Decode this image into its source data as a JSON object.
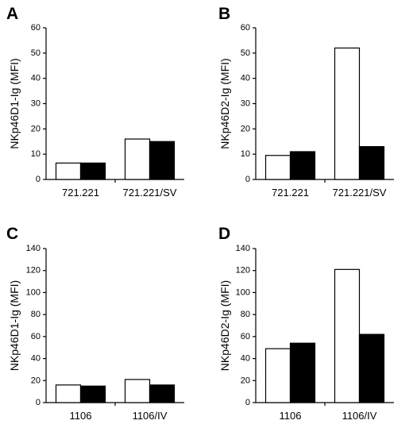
{
  "chart_data": [
    {
      "panel": "A",
      "type": "bar",
      "ylabel": "NKp46D1-Ig (MFI)",
      "ylim": [
        0,
        60
      ],
      "yticks": [
        0,
        10,
        20,
        30,
        40,
        50,
        60
      ],
      "categories": [
        "721.221",
        "721.221/SV"
      ],
      "series": [
        {
          "values": [
            6.5,
            16
          ],
          "fill": "#ffffff"
        },
        {
          "values": [
            6.5,
            15
          ],
          "fill": "#000000"
        }
      ]
    },
    {
      "panel": "B",
      "type": "bar",
      "ylabel": "NKp46D2-Ig (MFI)",
      "ylim": [
        0,
        60
      ],
      "yticks": [
        0,
        10,
        20,
        30,
        40,
        50,
        60
      ],
      "categories": [
        "721.221",
        "721.221/SV"
      ],
      "series": [
        {
          "values": [
            9.5,
            52
          ],
          "fill": "#ffffff"
        },
        {
          "values": [
            11,
            13
          ],
          "fill": "#000000"
        }
      ]
    },
    {
      "panel": "C",
      "type": "bar",
      "ylabel": "NKp46D1-Ig (MFI)",
      "ylim": [
        0,
        140
      ],
      "yticks": [
        0,
        20,
        40,
        60,
        80,
        100,
        120,
        140
      ],
      "categories": [
        "1106",
        "1106/IV"
      ],
      "series": [
        {
          "values": [
            16,
            21
          ],
          "fill": "#ffffff"
        },
        {
          "values": [
            15,
            16
          ],
          "fill": "#000000"
        }
      ]
    },
    {
      "panel": "D",
      "type": "bar",
      "ylabel": "NKp46D2-Ig (MFI)",
      "ylim": [
        0,
        140
      ],
      "yticks": [
        0,
        20,
        40,
        60,
        80,
        100,
        120,
        140
      ],
      "categories": [
        "1106",
        "1106/IV"
      ],
      "series": [
        {
          "values": [
            49,
            121
          ],
          "fill": "#ffffff"
        },
        {
          "values": [
            54,
            62
          ],
          "fill": "#000000"
        }
      ]
    }
  ]
}
